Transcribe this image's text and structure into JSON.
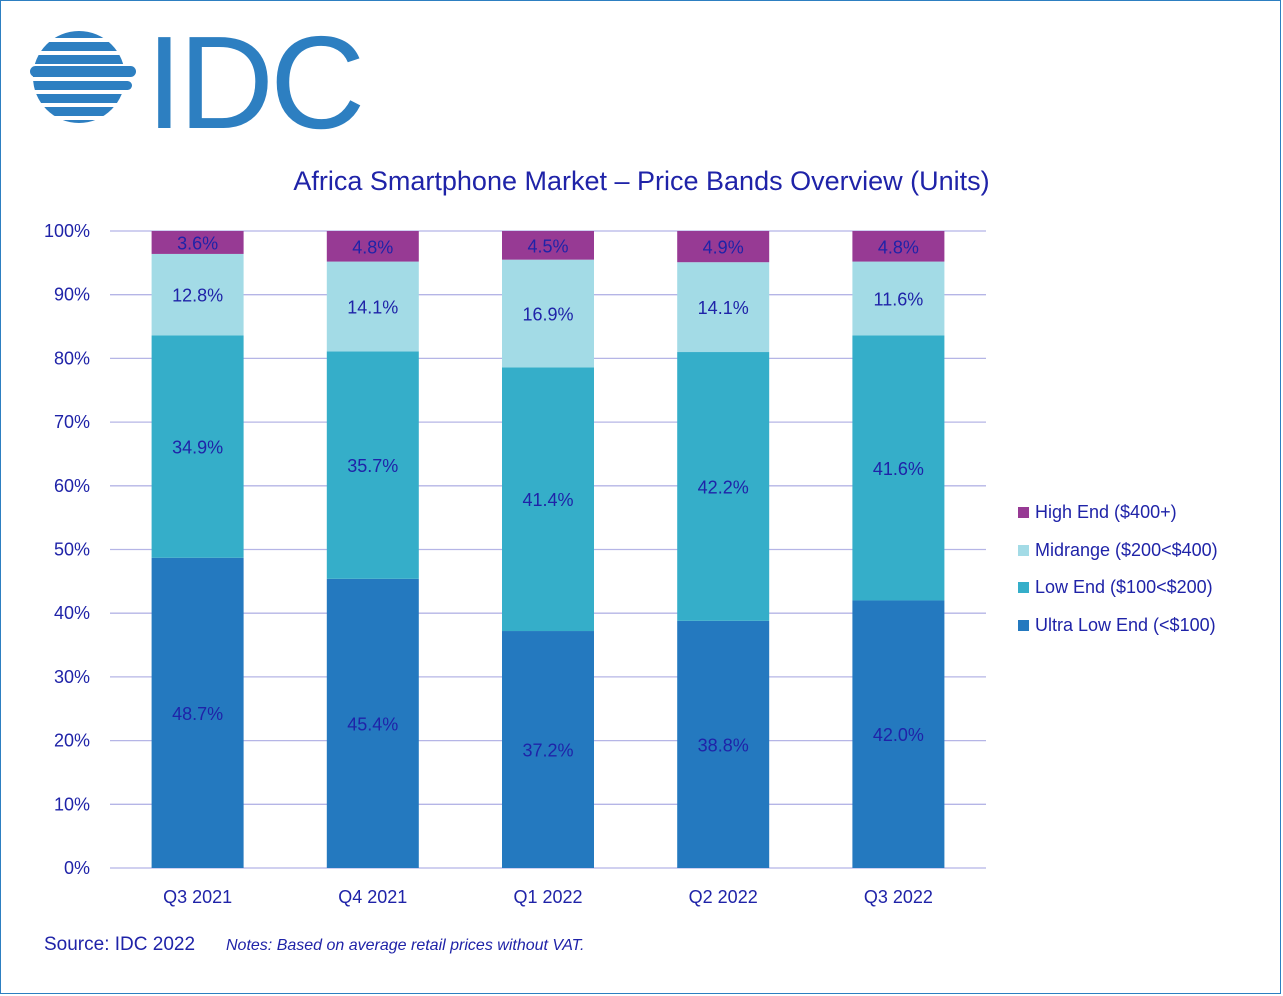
{
  "brand": {
    "logo_text": "IDC",
    "logo_color": "#2d7fc1"
  },
  "source_label": "Source: IDC 2022",
  "notes_label": "Notes:  Based on average retail prices without VAT.",
  "colors": {
    "ultra_low": "#2479bf",
    "low": "#35aec9",
    "mid": "#a3dbe6",
    "high": "#973a94",
    "label_text": "#1f23a8",
    "grid": "#b5b5e6"
  },
  "chart_data": {
    "type": "bar",
    "stacked": true,
    "title": "Africa Smartphone Market – Price Bands Overview (Units)",
    "xlabel": "",
    "ylabel": "",
    "ylim": [
      0,
      100
    ],
    "y_ticks": [
      "0%",
      "10%",
      "20%",
      "30%",
      "40%",
      "50%",
      "60%",
      "70%",
      "80%",
      "90%",
      "100%"
    ],
    "categories": [
      "Q3 2021",
      "Q4 2021",
      "Q1 2022",
      "Q2 2022",
      "Q3 2022"
    ],
    "series": [
      {
        "name": "Ultra Low End (<$100)",
        "color_key": "ultra_low",
        "values": [
          48.7,
          45.4,
          37.2,
          38.8,
          42.0
        ],
        "labels": [
          "48.7%",
          "45.4%",
          "37.2%",
          "38.8%",
          "42.0%"
        ]
      },
      {
        "name": "Low End ($100<$200)",
        "color_key": "low",
        "values": [
          34.9,
          35.7,
          41.4,
          42.2,
          41.6
        ],
        "labels": [
          "34.9%",
          "35.7%",
          "41.4%",
          "42.2%",
          "41.6%"
        ]
      },
      {
        "name": "Midrange ($200<$400)",
        "color_key": "mid",
        "values": [
          12.8,
          14.1,
          16.9,
          14.1,
          11.6
        ],
        "labels": [
          "12.8%",
          "14.1%",
          "16.9%",
          "14.1%",
          "11.6%"
        ]
      },
      {
        "name": "High End ($400+)",
        "color_key": "high",
        "values": [
          3.6,
          4.8,
          4.5,
          4.9,
          4.8
        ],
        "labels": [
          "3.6%",
          "4.8%",
          "4.5%",
          "4.9%",
          "4.8%"
        ]
      }
    ],
    "legend_position": "right"
  }
}
